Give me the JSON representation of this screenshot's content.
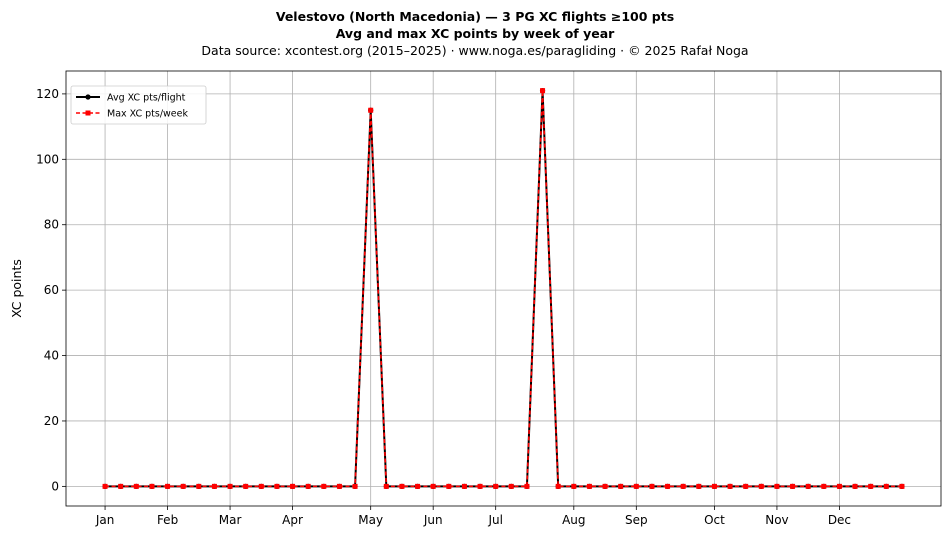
{
  "header": {
    "title": "Velestovo (North Macedonia)  —  3 PG XC flights ≥100 pts",
    "subtitle": "Avg and max XC points by week of year",
    "source": "Data source: xcontest.org (2015–2025)  ·  www.noga.es/paragliding  ·  © 2025 Rafał Noga"
  },
  "chart_data": {
    "type": "line",
    "title": "Velestovo (North Macedonia)  —  3 PG XC flights ≥100 pts",
    "subtitle": "Avg and max XC points by week of year",
    "xlabel": "",
    "ylabel": "XC points",
    "x": [
      1,
      2,
      3,
      4,
      5,
      6,
      7,
      8,
      9,
      10,
      11,
      12,
      13,
      14,
      15,
      16,
      17,
      18,
      19,
      20,
      21,
      22,
      23,
      24,
      25,
      26,
      27,
      28,
      29,
      30,
      31,
      32,
      33,
      34,
      35,
      36,
      37,
      38,
      39,
      40,
      41,
      42,
      43,
      44,
      45,
      46,
      47,
      48,
      49,
      50,
      51,
      52
    ],
    "x_tick_positions": [
      1,
      5,
      9,
      13,
      18,
      22,
      26,
      31,
      35,
      40,
      44,
      48
    ],
    "x_tick_labels": [
      "Jan",
      "Feb",
      "Mar",
      "Apr",
      "May",
      "Jun",
      "Jul",
      "Aug",
      "Sep",
      "Oct",
      "Nov",
      "Dec"
    ],
    "xlim": [
      -1.5,
      54.5
    ],
    "ylim": [
      -6,
      127
    ],
    "y_ticks": [
      0,
      20,
      40,
      60,
      80,
      100,
      120
    ],
    "grid": true,
    "legend_position": "top-left",
    "series": [
      {
        "name": "Avg XC pts/flight",
        "color": "#000000",
        "style": "solid",
        "marker": "circle",
        "values": [
          0,
          0,
          0,
          0,
          0,
          0,
          0,
          0,
          0,
          0,
          0,
          0,
          0,
          0,
          0,
          0,
          0,
          115,
          0,
          0,
          0,
          0,
          0,
          0,
          0,
          0,
          0,
          0,
          121,
          0,
          0,
          0,
          0,
          0,
          0,
          0,
          0,
          0,
          0,
          0,
          0,
          0,
          0,
          0,
          0,
          0,
          0,
          0,
          0,
          0,
          0,
          0
        ]
      },
      {
        "name": "Max XC pts/week",
        "color": "#ff0000",
        "style": "dashed",
        "marker": "square",
        "values": [
          0,
          0,
          0,
          0,
          0,
          0,
          0,
          0,
          0,
          0,
          0,
          0,
          0,
          0,
          0,
          0,
          0,
          115,
          0,
          0,
          0,
          0,
          0,
          0,
          0,
          0,
          0,
          0,
          121,
          0,
          0,
          0,
          0,
          0,
          0,
          0,
          0,
          0,
          0,
          0,
          0,
          0,
          0,
          0,
          0,
          0,
          0,
          0,
          0,
          0,
          0,
          0
        ]
      }
    ]
  }
}
